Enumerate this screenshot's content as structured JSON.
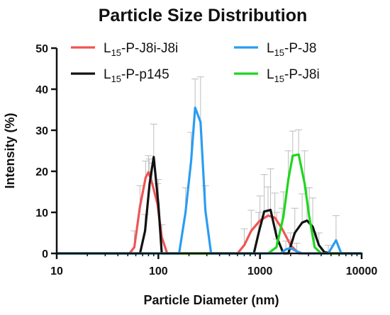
{
  "chart_data": {
    "type": "line",
    "title": "Particle Size Distribution",
    "xlabel": "Particle Diameter (nm)",
    "ylabel": "Intensity (%)",
    "x_scale": "log",
    "xlim": [
      10,
      10000
    ],
    "ylim": [
      0,
      50
    ],
    "x_ticks": [
      10,
      100,
      1000,
      10000
    ],
    "x_tick_labels": [
      "10",
      "100",
      "1000",
      "10000"
    ],
    "y_ticks": [
      0,
      10,
      20,
      30,
      40,
      50
    ],
    "y_tick_labels": [
      "0",
      "10",
      "20",
      "30",
      "40",
      "50"
    ],
    "legend_position": "top",
    "series": [
      {
        "name": "L15-P-J8i-J8i",
        "legend_main": "L",
        "legend_sub": "15",
        "legend_rest": "-P-J8i-J8i",
        "color": "#f05454",
        "points": [
          [
            10,
            0
          ],
          [
            52,
            0
          ],
          [
            58,
            1.5
          ],
          [
            66,
            11.5
          ],
          [
            75,
            18.5
          ],
          [
            80,
            19.8
          ],
          [
            87,
            17
          ],
          [
            98,
            12
          ],
          [
            108,
            4
          ],
          [
            122,
            0
          ],
          [
            600,
            0
          ],
          [
            700,
            2
          ],
          [
            820,
            5.5
          ],
          [
            1000,
            8
          ],
          [
            1200,
            9.2
          ],
          [
            1400,
            8.7
          ],
          [
            1650,
            6
          ],
          [
            2000,
            2
          ],
          [
            2400,
            0
          ],
          [
            10000,
            0
          ]
        ],
        "errors": [
          [
            58,
            4
          ],
          [
            66,
            5
          ],
          [
            75,
            4
          ],
          [
            80,
            4
          ],
          [
            87,
            5
          ],
          [
            98,
            5
          ],
          [
            108,
            3
          ],
          [
            700,
            4
          ],
          [
            820,
            5
          ],
          [
            1000,
            6
          ],
          [
            1200,
            7
          ],
          [
            1400,
            6
          ],
          [
            1650,
            5
          ],
          [
            2000,
            3
          ]
        ]
      },
      {
        "name": "L15-P-p145",
        "legend_main": "L",
        "legend_sub": "15",
        "legend_rest": "-P-p145",
        "color": "#111111",
        "points": [
          [
            10,
            0
          ],
          [
            66,
            0
          ],
          [
            74,
            5.5
          ],
          [
            82,
            17
          ],
          [
            90,
            23.5
          ],
          [
            100,
            12
          ],
          [
            108,
            0
          ],
          [
            870,
            0
          ],
          [
            970,
            5
          ],
          [
            1100,
            10.2
          ],
          [
            1270,
            10.6
          ],
          [
            1460,
            4
          ],
          [
            1700,
            0
          ],
          [
            1900,
            0
          ],
          [
            2200,
            5
          ],
          [
            2600,
            7.5
          ],
          [
            2900,
            8
          ],
          [
            3300,
            6.5
          ],
          [
            3800,
            2
          ],
          [
            4300,
            0.3
          ],
          [
            5000,
            0
          ],
          [
            10000,
            0
          ]
        ],
        "errors": [
          [
            74,
            4
          ],
          [
            82,
            6
          ],
          [
            90,
            8
          ],
          [
            100,
            6
          ],
          [
            970,
            5
          ],
          [
            1100,
            9
          ],
          [
            1270,
            10
          ],
          [
            1460,
            6
          ],
          [
            2200,
            6
          ],
          [
            2600,
            7
          ],
          [
            2900,
            8
          ],
          [
            3300,
            7
          ],
          [
            3800,
            3
          ]
        ]
      },
      {
        "name": "L15-P-J8",
        "legend_main": "L",
        "legend_sub": "15",
        "legend_rest": "-P-J8",
        "color": "#2a9df0",
        "points": [
          [
            10,
            0
          ],
          [
            160,
            0
          ],
          [
            185,
            10
          ],
          [
            210,
            22.5
          ],
          [
            230,
            35.5
          ],
          [
            260,
            32
          ],
          [
            290,
            10.5
          ],
          [
            330,
            0
          ],
          [
            1600,
            0
          ],
          [
            1800,
            1
          ],
          [
            2000,
            1.3
          ],
          [
            2300,
            0.5
          ],
          [
            2600,
            0
          ],
          [
            4700,
            0
          ],
          [
            5600,
            3.2
          ],
          [
            6300,
            0
          ],
          [
            10000,
            0
          ]
        ],
        "errors": [
          [
            185,
            6
          ],
          [
            210,
            7
          ],
          [
            230,
            7
          ],
          [
            260,
            11
          ],
          [
            290,
            6
          ],
          [
            1800,
            2
          ],
          [
            2000,
            2
          ],
          [
            2300,
            2
          ],
          [
            4700,
            2
          ],
          [
            5600,
            6
          ]
        ]
      },
      {
        "name": "L15-P-J8i",
        "legend_main": "L",
        "legend_sub": "15",
        "legend_rest": "-P-J8i",
        "color": "#1ed61e",
        "points": [
          [
            10,
            0
          ],
          [
            1200,
            0
          ],
          [
            1450,
            1.5
          ],
          [
            1700,
            9
          ],
          [
            1900,
            18
          ],
          [
            2100,
            23.8
          ],
          [
            2400,
            24.1
          ],
          [
            2750,
            17
          ],
          [
            3050,
            9
          ],
          [
            3450,
            1.5
          ],
          [
            4000,
            0
          ],
          [
            10000,
            0
          ]
        ],
        "errors": [
          [
            1450,
            2
          ],
          [
            1700,
            6
          ],
          [
            1900,
            7
          ],
          [
            2100,
            6
          ],
          [
            2400,
            6
          ],
          [
            2750,
            8
          ],
          [
            3050,
            7
          ],
          [
            3450,
            3
          ]
        ]
      }
    ]
  }
}
